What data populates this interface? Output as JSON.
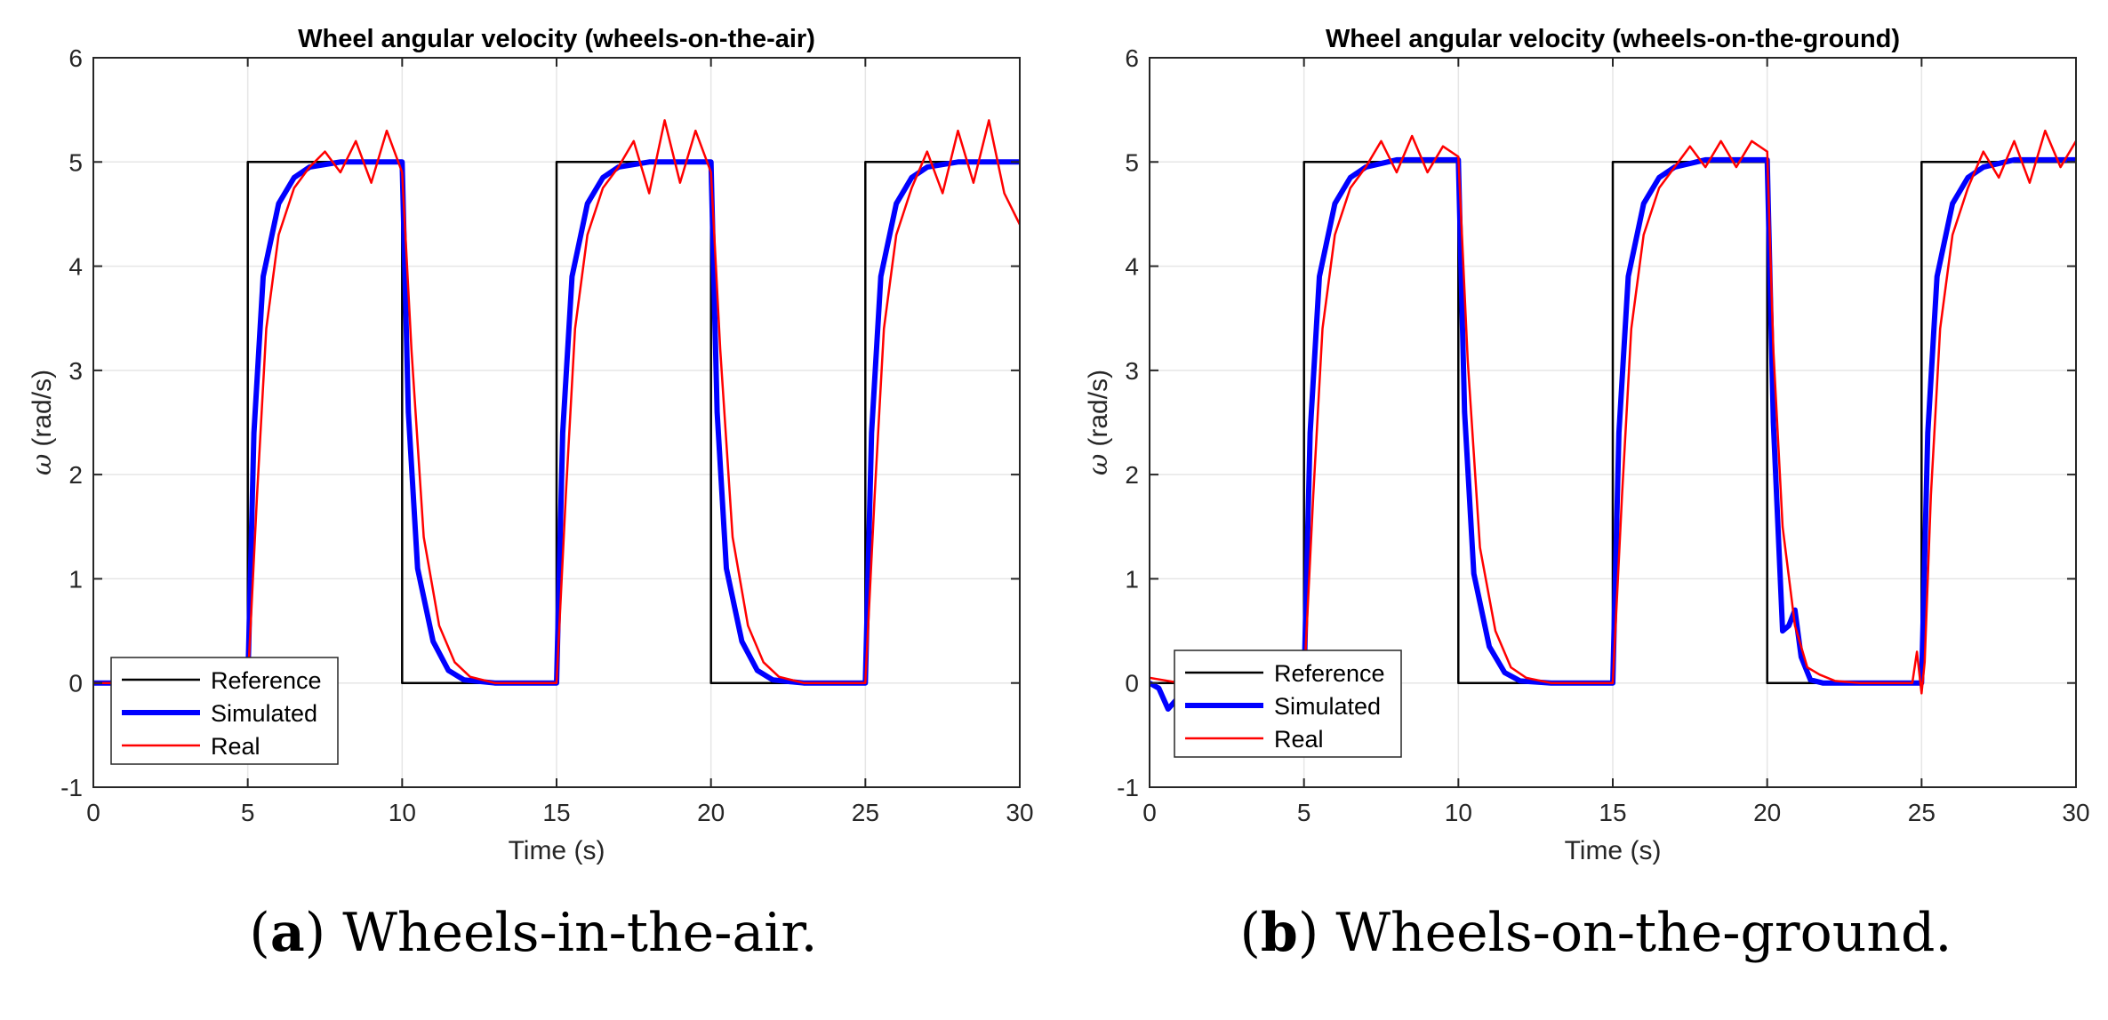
{
  "figure": {
    "captions": [
      {
        "letter": "a",
        "text": ") Wheels-in-the-air.",
        "open": "("
      },
      {
        "letter": "b",
        "text": ") Wheels-on-the-ground.",
        "open": "("
      }
    ]
  },
  "colors": {
    "reference": "#000000",
    "simulated": "#0000ff",
    "real": "#ff0000",
    "grid": "#e6e6e6",
    "axis": "#262626"
  },
  "chart_data": [
    {
      "type": "line",
      "title": "Wheel angular velocity (wheels-on-the-air)",
      "xlabel": "Time (s)",
      "ylabel_symbol": "ω",
      "ylabel_unit": "(rad/s)",
      "xlim": [
        0,
        30
      ],
      "ylim": [
        -1,
        6
      ],
      "xticks": [
        0,
        5,
        10,
        15,
        20,
        25,
        30
      ],
      "yticks": [
        -1,
        0,
        1,
        2,
        3,
        4,
        5,
        6
      ],
      "grid": true,
      "legend_position": "bottom-left",
      "series": [
        {
          "name": "Reference",
          "style": "reference",
          "x": [
            0,
            5,
            5,
            10,
            10,
            15,
            15,
            20,
            20,
            25,
            25,
            30
          ],
          "y": [
            0,
            0,
            5,
            5,
            0,
            0,
            5,
            5,
            0,
            0,
            5,
            5
          ]
        },
        {
          "name": "Simulated",
          "style": "simulated",
          "x": [
            0,
            5,
            5.2,
            5.5,
            6,
            6.5,
            7,
            8,
            10,
            10.2,
            10.5,
            11,
            11.5,
            12,
            13,
            15,
            15.2,
            15.5,
            16,
            16.5,
            17,
            18,
            20,
            20.2,
            20.5,
            21,
            21.5,
            22,
            23,
            25,
            25.2,
            25.5,
            26,
            26.5,
            27,
            28,
            30
          ],
          "y": [
            0,
            0,
            2.4,
            3.9,
            4.6,
            4.85,
            4.95,
            5,
            5,
            2.6,
            1.1,
            0.4,
            0.12,
            0.03,
            0,
            0,
            2.4,
            3.9,
            4.6,
            4.85,
            4.95,
            5,
            5,
            2.6,
            1.1,
            0.4,
            0.12,
            0.03,
            0,
            0,
            2.4,
            3.9,
            4.6,
            4.85,
            4.95,
            5,
            5
          ]
        },
        {
          "name": "Real",
          "style": "real",
          "x": [
            0,
            5,
            5.3,
            5.6,
            6,
            6.5,
            7,
            7.5,
            8,
            8.5,
            9,
            9.5,
            10,
            10.3,
            10.7,
            11.2,
            11.7,
            12.2,
            13,
            15,
            15.3,
            15.6,
            16,
            16.5,
            17,
            17.5,
            18,
            18.5,
            19,
            19.5,
            20,
            20.3,
            20.7,
            21.2,
            21.7,
            22.2,
            23,
            25,
            25.3,
            25.6,
            26,
            26.5,
            27,
            27.5,
            28,
            28.5,
            29,
            29.5,
            30
          ],
          "y": [
            0,
            0,
            1.8,
            3.4,
            4.3,
            4.75,
            4.95,
            5.1,
            4.9,
            5.2,
            4.8,
            5.3,
            4.9,
            3.2,
            1.4,
            0.55,
            0.2,
            0.06,
            0,
            0,
            1.8,
            3.4,
            4.3,
            4.75,
            4.95,
            5.2,
            4.7,
            5.4,
            4.8,
            5.3,
            4.9,
            3.2,
            1.4,
            0.55,
            0.2,
            0.06,
            0,
            0,
            1.8,
            3.4,
            4.3,
            4.75,
            5.1,
            4.7,
            5.3,
            4.8,
            5.4,
            4.7,
            4.4
          ]
        }
      ]
    },
    {
      "type": "line",
      "title": "Wheel angular velocity (wheels-on-the-ground)",
      "xlabel": "Time (s)",
      "ylabel_symbol": "ω",
      "ylabel_unit": "(rad/s)",
      "xlim": [
        0,
        30
      ],
      "ylim": [
        -1,
        6
      ],
      "xticks": [
        0,
        5,
        10,
        15,
        20,
        25,
        30
      ],
      "yticks": [
        -1,
        0,
        1,
        2,
        3,
        4,
        5,
        6
      ],
      "grid": true,
      "legend_position": "bottom-left",
      "series": [
        {
          "name": "Reference",
          "style": "reference",
          "x": [
            0,
            5,
            5,
            10,
            10,
            15,
            15,
            20,
            20,
            25,
            25,
            30
          ],
          "y": [
            0,
            0,
            5,
            5,
            0,
            0,
            5,
            5,
            0,
            0,
            5,
            5
          ]
        },
        {
          "name": "Simulated",
          "style": "simulated",
          "x": [
            0,
            0.3,
            0.6,
            0.9,
            1.2,
            1.6,
            2,
            5,
            5.2,
            5.5,
            6,
            6.5,
            7,
            8,
            10,
            10.2,
            10.5,
            11,
            11.5,
            12,
            13,
            15,
            15.2,
            15.5,
            16,
            16.5,
            17,
            18,
            20,
            20.2,
            20.5,
            20.7,
            20.9,
            21.1,
            21.4,
            21.8,
            22.2,
            25,
            25.2,
            25.5,
            26,
            26.5,
            27,
            28,
            30
          ],
          "y": [
            0,
            -0.05,
            -0.25,
            -0.15,
            -0.05,
            0,
            0,
            0,
            2.4,
            3.9,
            4.6,
            4.85,
            4.95,
            5.02,
            5.02,
            2.6,
            1.05,
            0.35,
            0.1,
            0.02,
            0,
            0,
            2.4,
            3.9,
            4.6,
            4.85,
            4.95,
            5.02,
            5.02,
            2.5,
            0.5,
            0.55,
            0.7,
            0.25,
            0.03,
            0,
            0,
            0,
            2.4,
            3.9,
            4.6,
            4.85,
            4.95,
            5.02,
            5.02
          ]
        },
        {
          "name": "Real",
          "style": "real",
          "x": [
            0,
            1,
            2,
            5,
            5.3,
            5.6,
            6,
            6.5,
            7,
            7.5,
            8,
            8.5,
            9,
            9.5,
            10,
            10.3,
            10.7,
            11.2,
            11.7,
            12.2,
            13,
            15,
            15.3,
            15.6,
            16,
            16.5,
            17,
            17.5,
            18,
            18.5,
            19,
            19.5,
            20,
            20.2,
            20.5,
            20.9,
            21.3,
            21.7,
            22.2,
            23,
            24.7,
            24.85,
            25,
            25.1,
            25.3,
            25.6,
            26,
            26.5,
            27,
            27.5,
            28,
            28.5,
            29,
            29.5,
            30
          ],
          "y": [
            0.05,
            0,
            0,
            0,
            1.8,
            3.4,
            4.3,
            4.75,
            4.95,
            5.2,
            4.9,
            5.25,
            4.9,
            5.15,
            5.05,
            3.1,
            1.3,
            0.5,
            0.15,
            0.05,
            0,
            0,
            1.8,
            3.4,
            4.3,
            4.75,
            4.95,
            5.15,
            4.95,
            5.2,
            4.95,
            5.2,
            5.1,
            3.2,
            1.5,
            0.55,
            0.15,
            0.08,
            0.02,
            0,
            0,
            0.3,
            -0.1,
            0.2,
            1.8,
            3.4,
            4.3,
            4.75,
            5.1,
            4.85,
            5.2,
            4.8,
            5.3,
            4.95,
            5.2
          ]
        }
      ]
    }
  ]
}
